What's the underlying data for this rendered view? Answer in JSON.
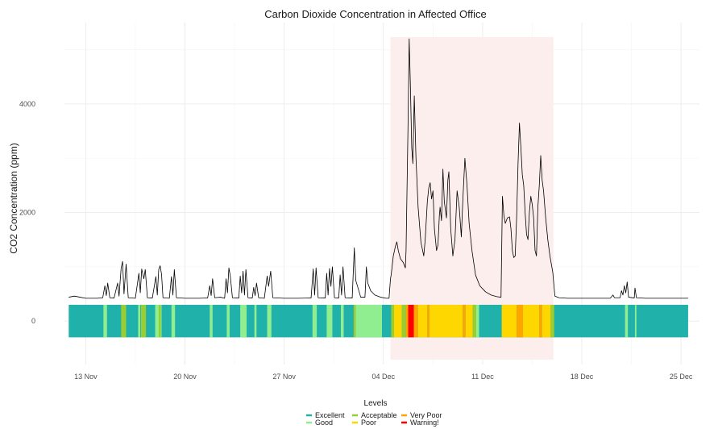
{
  "chart_data": {
    "type": "line",
    "title": "Carbon Dioxide Concentration in Affected Office",
    "xlabel": "",
    "ylabel": "CO2 Concentration (ppm)",
    "x_ticks": [
      "13 Nov",
      "20 Nov",
      "27 Nov",
      "04 Dec",
      "11 Dec",
      "18 Dec",
      "25 Dec"
    ],
    "y_ticks": [
      0,
      2000,
      4000
    ],
    "x_range_days": [
      -1.5,
      43.3
    ],
    "ylim": [
      -800,
      5500
    ],
    "grid": true,
    "shaded_region": {
      "start_day": 21.5,
      "end_day": 33.0,
      "color": "#fdeeee"
    },
    "series": [
      {
        "name": "",
        "color": "#000000",
        "points": [
          [
            -1.2,
            440
          ],
          [
            -0.8,
            460
          ],
          [
            -0.4,
            440
          ],
          [
            0,
            420
          ],
          [
            0.8,
            420
          ],
          [
            1.2,
            430
          ],
          [
            1.35,
            650
          ],
          [
            1.45,
            470
          ],
          [
            1.55,
            700
          ],
          [
            1.7,
            430
          ],
          [
            2.0,
            425
          ],
          [
            2.25,
            700
          ],
          [
            2.35,
            460
          ],
          [
            2.5,
            980
          ],
          [
            2.6,
            1100
          ],
          [
            2.7,
            500
          ],
          [
            2.85,
            1050
          ],
          [
            3.0,
            430
          ],
          [
            3.5,
            420
          ],
          [
            3.75,
            880
          ],
          [
            3.85,
            520
          ],
          [
            3.95,
            960
          ],
          [
            4.1,
            780
          ],
          [
            4.2,
            950
          ],
          [
            4.35,
            430
          ],
          [
            4.7,
            425
          ],
          [
            4.95,
            820
          ],
          [
            5.05,
            480
          ],
          [
            5.15,
            950
          ],
          [
            5.25,
            1020
          ],
          [
            5.35,
            860
          ],
          [
            5.45,
            430
          ],
          [
            5.9,
            420
          ],
          [
            6.05,
            820
          ],
          [
            6.15,
            480
          ],
          [
            6.25,
            950
          ],
          [
            6.4,
            430
          ],
          [
            7.0,
            420
          ],
          [
            7.5,
            420
          ],
          [
            8.0,
            420
          ],
          [
            8.6,
            425
          ],
          [
            8.75,
            650
          ],
          [
            8.85,
            470
          ],
          [
            8.95,
            780
          ],
          [
            9.1,
            430
          ],
          [
            9.5,
            440
          ],
          [
            9.8,
            420
          ],
          [
            9.9,
            780
          ],
          [
            10.0,
            520
          ],
          [
            10.1,
            980
          ],
          [
            10.2,
            830
          ],
          [
            10.35,
            430
          ],
          [
            10.8,
            425
          ],
          [
            10.9,
            830
          ],
          [
            11.0,
            520
          ],
          [
            11.1,
            920
          ],
          [
            11.2,
            480
          ],
          [
            11.3,
            950
          ],
          [
            11.45,
            430
          ],
          [
            11.75,
            425
          ],
          [
            11.85,
            620
          ],
          [
            11.95,
            470
          ],
          [
            12.05,
            700
          ],
          [
            12.2,
            430
          ],
          [
            12.6,
            420
          ],
          [
            12.8,
            830
          ],
          [
            12.9,
            640
          ],
          [
            13.05,
            920
          ],
          [
            13.2,
            430
          ],
          [
            14.0,
            420
          ],
          [
            15.0,
            420
          ],
          [
            15.9,
            425
          ],
          [
            16.05,
            960
          ],
          [
            16.15,
            480
          ],
          [
            16.25,
            980
          ],
          [
            16.4,
            430
          ],
          [
            16.9,
            425
          ],
          [
            17.0,
            880
          ],
          [
            17.1,
            480
          ],
          [
            17.2,
            970
          ],
          [
            17.3,
            640
          ],
          [
            17.4,
            1000
          ],
          [
            17.55,
            430
          ],
          [
            17.85,
            425
          ],
          [
            17.95,
            850
          ],
          [
            18.05,
            480
          ],
          [
            18.15,
            1000
          ],
          [
            18.3,
            430
          ],
          [
            18.8,
            425
          ],
          [
            18.95,
            1350
          ],
          [
            19.05,
            750
          ],
          [
            19.2,
            620
          ],
          [
            19.4,
            440
          ],
          [
            19.7,
            440
          ],
          [
            19.8,
            1000
          ],
          [
            19.9,
            700
          ],
          [
            20.1,
            560
          ],
          [
            20.4,
            480
          ],
          [
            20.8,
            440
          ],
          [
            21.2,
            420
          ],
          [
            21.4,
            420
          ],
          [
            21.5,
            780
          ],
          [
            21.55,
            850
          ],
          [
            21.7,
            1200
          ],
          [
            21.85,
            1380
          ],
          [
            21.95,
            1460
          ],
          [
            22.05,
            1300
          ],
          [
            22.2,
            1150
          ],
          [
            22.4,
            1080
          ],
          [
            22.55,
            980
          ],
          [
            22.6,
            1300
          ],
          [
            22.75,
            3800
          ],
          [
            22.82,
            5200
          ],
          [
            22.9,
            4400
          ],
          [
            23.0,
            3200
          ],
          [
            23.08,
            2900
          ],
          [
            23.18,
            4150
          ],
          [
            23.3,
            3000
          ],
          [
            23.45,
            2100
          ],
          [
            23.65,
            1450
          ],
          [
            23.85,
            1200
          ],
          [
            23.95,
            1500
          ],
          [
            24.1,
            2200
          ],
          [
            24.2,
            2450
          ],
          [
            24.3,
            2550
          ],
          [
            24.4,
            2250
          ],
          [
            24.5,
            2400
          ],
          [
            24.6,
            1700
          ],
          [
            24.75,
            1300
          ],
          [
            24.85,
            1400
          ],
          [
            24.95,
            1950
          ],
          [
            25.0,
            2100
          ],
          [
            25.1,
            1850
          ],
          [
            25.2,
            2800
          ],
          [
            25.3,
            2200
          ],
          [
            25.45,
            1900
          ],
          [
            25.55,
            2600
          ],
          [
            25.62,
            2750
          ],
          [
            25.75,
            1700
          ],
          [
            25.9,
            1200
          ],
          [
            26.05,
            1500
          ],
          [
            26.2,
            2400
          ],
          [
            26.35,
            2100
          ],
          [
            26.5,
            1550
          ],
          [
            26.6,
            2200
          ],
          [
            26.75,
            3000
          ],
          [
            26.9,
            2500
          ],
          [
            27.05,
            1800
          ],
          [
            27.25,
            1300
          ],
          [
            27.5,
            850
          ],
          [
            27.8,
            650
          ],
          [
            28.2,
            540
          ],
          [
            28.6,
            480
          ],
          [
            29.0,
            450
          ],
          [
            29.3,
            440
          ],
          [
            29.4,
            2300
          ],
          [
            29.5,
            1950
          ],
          [
            29.6,
            1800
          ],
          [
            29.75,
            1900
          ],
          [
            29.9,
            1920
          ],
          [
            30.0,
            1700
          ],
          [
            30.1,
            1300
          ],
          [
            30.2,
            1170
          ],
          [
            30.3,
            1200
          ],
          [
            30.4,
            1900
          ],
          [
            30.5,
            2900
          ],
          [
            30.6,
            3650
          ],
          [
            30.7,
            3200
          ],
          [
            30.8,
            2700
          ],
          [
            30.9,
            2500
          ],
          [
            31.0,
            2000
          ],
          [
            31.1,
            1600
          ],
          [
            31.2,
            1500
          ],
          [
            31.3,
            2000
          ],
          [
            31.4,
            2300
          ],
          [
            31.5,
            2150
          ],
          [
            31.6,
            1900
          ],
          [
            31.7,
            1300
          ],
          [
            31.8,
            1200
          ],
          [
            31.9,
            2100
          ],
          [
            32.0,
            2500
          ],
          [
            32.1,
            3050
          ],
          [
            32.2,
            2600
          ],
          [
            32.3,
            2400
          ],
          [
            32.45,
            1900
          ],
          [
            32.6,
            1500
          ],
          [
            32.75,
            1200
          ],
          [
            32.95,
            900
          ],
          [
            33.1,
            460
          ],
          [
            33.4,
            430
          ],
          [
            34.0,
            420
          ],
          [
            35.0,
            420
          ],
          [
            36.0,
            420
          ],
          [
            37.0,
            420
          ],
          [
            37.2,
            480
          ],
          [
            37.3,
            430
          ],
          [
            37.7,
            430
          ],
          [
            37.8,
            560
          ],
          [
            37.9,
            480
          ],
          [
            38.0,
            650
          ],
          [
            38.1,
            520
          ],
          [
            38.2,
            720
          ],
          [
            38.3,
            440
          ],
          [
            38.7,
            425
          ],
          [
            38.75,
            610
          ],
          [
            38.85,
            430
          ],
          [
            39.5,
            420
          ],
          [
            40.5,
            420
          ],
          [
            41.5,
            420
          ],
          [
            42.5,
            420
          ]
        ]
      }
    ],
    "level_band": {
      "y_range": [
        -300,
        300
      ],
      "colors": {
        "Excellent": "#20b2aa",
        "Good": "#90ee90",
        "Acceptable": "#9acd32",
        "Poor": "#ffd700",
        "Very Poor": "#ffa500",
        "Warning!": "#ff0000"
      },
      "segments": [
        {
          "start_day": 1.25,
          "end_day": 1.5,
          "level": "Good"
        },
        {
          "start_day": 2.5,
          "end_day": 2.85,
          "level": "Acceptable"
        },
        {
          "start_day": 3.7,
          "end_day": 3.85,
          "level": "Good"
        },
        {
          "start_day": 3.9,
          "end_day": 4.25,
          "level": "Acceptable"
        },
        {
          "start_day": 4.9,
          "end_day": 5.35,
          "level": "Good"
        },
        {
          "start_day": 5.15,
          "end_day": 5.3,
          "level": "Acceptable"
        },
        {
          "start_day": 6.05,
          "end_day": 6.3,
          "level": "Good"
        },
        {
          "start_day": 8.75,
          "end_day": 8.95,
          "level": "Good"
        },
        {
          "start_day": 9.95,
          "end_day": 10.15,
          "level": "Good"
        },
        {
          "start_day": 10.9,
          "end_day": 11.35,
          "level": "Good"
        },
        {
          "start_day": 11.9,
          "end_day": 12.05,
          "level": "Good"
        },
        {
          "start_day": 12.8,
          "end_day": 13.1,
          "level": "Good"
        },
        {
          "start_day": 16.0,
          "end_day": 16.3,
          "level": "Good"
        },
        {
          "start_day": 17.0,
          "end_day": 17.4,
          "level": "Good"
        },
        {
          "start_day": 18.0,
          "end_day": 18.2,
          "level": "Good"
        },
        {
          "start_day": 18.9,
          "end_day": 19.05,
          "level": "Acceptable"
        },
        {
          "start_day": 19.05,
          "end_day": 20.9,
          "level": "Good"
        },
        {
          "start_day": 21.55,
          "end_day": 21.75,
          "level": "Acceptable"
        },
        {
          "start_day": 21.75,
          "end_day": 22.3,
          "level": "Poor"
        },
        {
          "start_day": 22.3,
          "end_day": 22.6,
          "level": "Acceptable"
        },
        {
          "start_day": 22.6,
          "end_day": 22.75,
          "level": "Very Poor"
        },
        {
          "start_day": 22.75,
          "end_day": 23.15,
          "level": "Warning!"
        },
        {
          "start_day": 23.15,
          "end_day": 23.45,
          "level": "Very Poor"
        },
        {
          "start_day": 23.45,
          "end_day": 24.1,
          "level": "Poor"
        },
        {
          "start_day": 24.1,
          "end_day": 24.25,
          "level": "Very Poor"
        },
        {
          "start_day": 24.25,
          "end_day": 26.6,
          "level": "Poor"
        },
        {
          "start_day": 26.6,
          "end_day": 26.8,
          "level": "Very Poor"
        },
        {
          "start_day": 26.8,
          "end_day": 27.3,
          "level": "Poor"
        },
        {
          "start_day": 27.3,
          "end_day": 27.55,
          "level": "Acceptable"
        },
        {
          "start_day": 27.55,
          "end_day": 27.75,
          "level": "Good"
        },
        {
          "start_day": 29.35,
          "end_day": 30.4,
          "level": "Poor"
        },
        {
          "start_day": 30.4,
          "end_day": 30.85,
          "level": "Very Poor"
        },
        {
          "start_day": 30.85,
          "end_day": 32.0,
          "level": "Poor"
        },
        {
          "start_day": 32.0,
          "end_day": 32.2,
          "level": "Very Poor"
        },
        {
          "start_day": 32.2,
          "end_day": 32.8,
          "level": "Poor"
        },
        {
          "start_day": 32.8,
          "end_day": 33.05,
          "level": "Acceptable"
        },
        {
          "start_day": 38.05,
          "end_day": 38.25,
          "level": "Good"
        },
        {
          "start_day": 38.75,
          "end_day": 38.85,
          "level": "Good"
        }
      ]
    },
    "legend": {
      "title": "Levels",
      "placement": "bottom",
      "items": [
        "Excellent",
        "Good",
        "Acceptable",
        "Poor",
        "Very Poor",
        "Warning!"
      ]
    }
  }
}
